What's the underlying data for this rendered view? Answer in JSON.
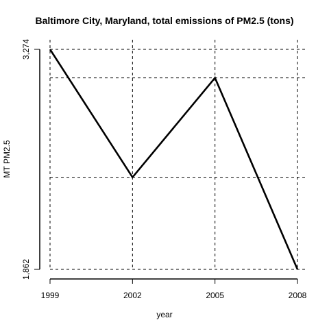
{
  "chart_data": {
    "type": "line",
    "title": "Baltimore City, Maryland, total emissions of PM2.5 (tons)",
    "xlabel": "year",
    "ylabel": "MT PM2.5",
    "x": [
      1999,
      2002,
      2005,
      2008
    ],
    "series": [
      {
        "values": [
          3274,
          2453,
          3091,
          1862
        ],
        "color": "#000000"
      }
    ],
    "xticks": [
      "1999",
      "2002",
      "2005",
      "2008"
    ],
    "yticks": [
      {
        "value": 3274,
        "label": "3,274"
      },
      {
        "value": 1862,
        "label": "1,862"
      }
    ],
    "xlim": [
      1999,
      2008
    ],
    "ylim": [
      1862,
      3274
    ],
    "grid": "dashed lines at each data point"
  }
}
